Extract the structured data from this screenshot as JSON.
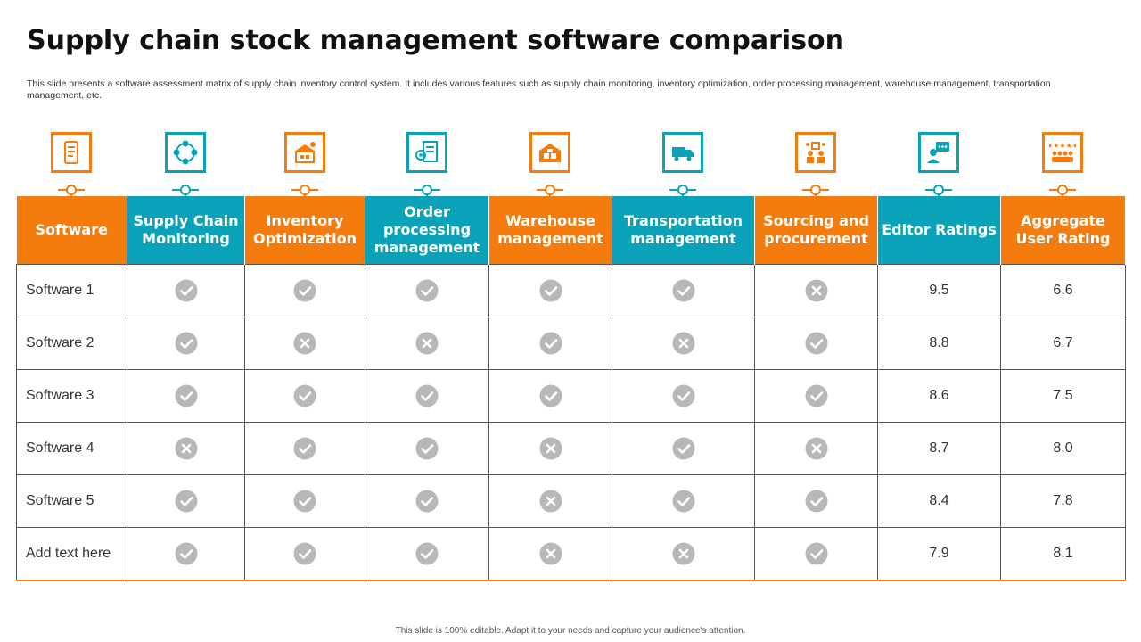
{
  "title": "Supply chain stock management software comparison",
  "subtitle": "This slide presents a software assessment matrix of supply chain inventory control system. It includes various features such as supply chain monitoring, inventory optimization, order processing management, warehouse management, transportation management, etc.",
  "colors": {
    "orange": "#f47c0e",
    "teal": "#0aa2b8",
    "mark_gray": "#b8b8b8"
  },
  "columns": [
    {
      "label": "Software",
      "color": "orange",
      "icon": "phone-list-icon"
    },
    {
      "label": "Supply Chain Monitoring",
      "color": "teal",
      "icon": "supply-network-icon"
    },
    {
      "label": "Inventory Optimization",
      "color": "orange",
      "icon": "warehouse-gear-icon"
    },
    {
      "label": "Order processing management",
      "color": "teal",
      "icon": "order-document-icon"
    },
    {
      "label": "Warehouse management",
      "color": "orange",
      "icon": "warehouse-boxes-icon"
    },
    {
      "label": "Transportation management",
      "color": "teal",
      "icon": "delivery-truck-icon"
    },
    {
      "label": "Sourcing and procurement",
      "color": "orange",
      "icon": "procurement-team-icon"
    },
    {
      "label": "Editor Ratings",
      "color": "teal",
      "icon": "editor-review-icon"
    },
    {
      "label": "Aggregate User Rating",
      "color": "orange",
      "icon": "user-rating-stars-icon"
    }
  ],
  "rows": [
    {
      "name": "Software 1",
      "features": [
        "check",
        "check",
        "check",
        "check",
        "check",
        "cross"
      ],
      "editor": "9.5",
      "user": "6.6"
    },
    {
      "name": "Software 2",
      "features": [
        "check",
        "cross",
        "cross",
        "check",
        "cross",
        "check"
      ],
      "editor": "8.8",
      "user": "6.7"
    },
    {
      "name": "Software 3",
      "features": [
        "check",
        "check",
        "check",
        "check",
        "check",
        "check"
      ],
      "editor": "8.6",
      "user": "7.5"
    },
    {
      "name": "Software 4",
      "features": [
        "cross",
        "check",
        "check",
        "cross",
        "check",
        "cross"
      ],
      "editor": "8.7",
      "user": "8.0"
    },
    {
      "name": "Software 5",
      "features": [
        "check",
        "check",
        "check",
        "cross",
        "check",
        "check"
      ],
      "editor": "8.4",
      "user": "7.8"
    },
    {
      "name": "Add text here",
      "features": [
        "check",
        "check",
        "check",
        "cross",
        "cross",
        "check"
      ],
      "editor": "7.9",
      "user": "8.1"
    }
  ],
  "footer": "This slide is 100% editable. Adapt it to your needs and capture your audience's attention."
}
